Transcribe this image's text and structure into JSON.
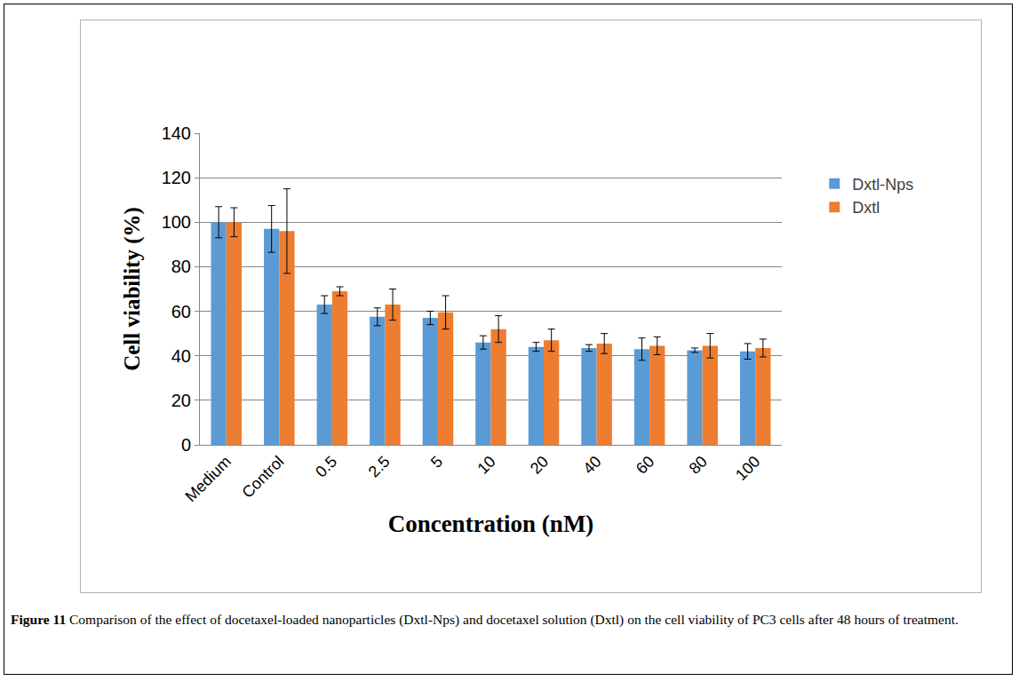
{
  "chart_data": {
    "type": "bar",
    "x_label": "Concentration (nM)",
    "y_label": "Cell viability (%)",
    "caption_label": "Figure 11",
    "caption": "Comparison of the effect of docetaxel-loaded nanoparticles (Dxtl-Nps) and docetaxel solution (Dxtl) on the cell viability of PC3 cells after 48 hours of treatment.",
    "categories": [
      "Medium",
      "Control",
      "0.5",
      "2.5",
      "5",
      "10",
      "20",
      "40",
      "60",
      "80",
      "100"
    ],
    "series": [
      {
        "name": "Dxtl-Nps",
        "color": "#5b9bd5",
        "values": [
          100,
          97,
          63,
          57.5,
          57,
          46,
          44,
          43.5,
          43,
          42.5,
          42
        ],
        "errors": [
          7,
          10.5,
          4,
          4,
          3,
          3,
          2,
          1.5,
          5,
          1,
          3.5
        ]
      },
      {
        "name": "Dxtl",
        "color": "#ed7d31",
        "values": [
          100,
          96,
          69,
          63,
          59.5,
          52,
          47,
          45.5,
          44.5,
          44.5,
          43.5
        ],
        "errors": [
          6.5,
          19,
          2,
          7,
          7.5,
          6,
          5,
          4.5,
          4,
          5.5,
          4
        ]
      }
    ],
    "ylim": [
      0,
      140
    ],
    "yticks": [
      0,
      20,
      40,
      60,
      80,
      100,
      120,
      140
    ],
    "grid": true,
    "legend": "right"
  }
}
